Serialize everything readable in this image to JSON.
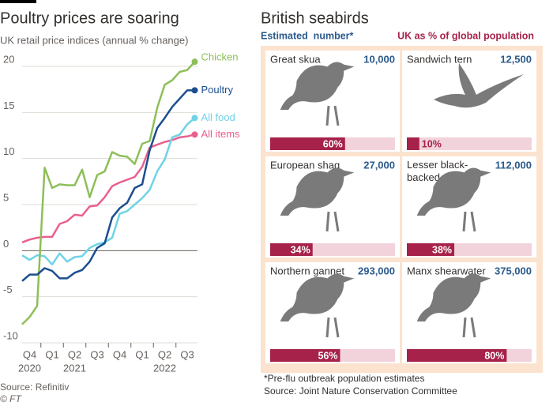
{
  "chart_data": [
    {
      "type": "line",
      "title": "Poultry prices are soaring",
      "subtitle": "UK retail price indices (annual % change)",
      "categories": [
        null,
        "Q4",
        null,
        null,
        "Q1",
        null,
        null,
        "Q2",
        null,
        null,
        "Q3",
        null,
        null,
        "Q4",
        null,
        null,
        "Q1",
        null,
        null,
        "Q2",
        null,
        null,
        "Q3",
        null
      ],
      "years": [
        null,
        "2020",
        null,
        null,
        null,
        null,
        null,
        "2021",
        null,
        null,
        null,
        null,
        null,
        null,
        null,
        null,
        null,
        null,
        null,
        "2022",
        null,
        null,
        null,
        null
      ],
      "ylim": [
        -10,
        20
      ],
      "yticks": [
        -10,
        -5,
        0,
        5,
        10,
        15,
        20
      ],
      "grid": true,
      "series": [
        {
          "name": "Chicken",
          "color": "#8dbf58",
          "values": [
            -8,
            -7.2,
            -6,
            9,
            6.8,
            7.2,
            7.1,
            7.1,
            8.8,
            5.8,
            8.2,
            8.6,
            10.7,
            10.3,
            10.2,
            9.4,
            11.6,
            11.9,
            15.5,
            18,
            18.5,
            19.4,
            19.6,
            20.5
          ]
        },
        {
          "name": "Poultry",
          "color": "#1b4e8f",
          "values": [
            -3.3,
            -2.6,
            -2.6,
            -1.9,
            -2.2,
            -3,
            -3,
            -2.4,
            -2.1,
            -1.2,
            0.3,
            0.8,
            3.6,
            4.6,
            5.2,
            6.8,
            7.2,
            10.9,
            13.3,
            14.4,
            15.6,
            16.5,
            17.4,
            17.4
          ]
        },
        {
          "name": "All food",
          "color": "#6fd3e6",
          "values": [
            -0.5,
            -1,
            -0.5,
            -0.6,
            -1.5,
            -0.3,
            -1.2,
            -0.7,
            -0.6,
            0.3,
            0.7,
            0.9,
            1.4,
            4,
            4.3,
            5,
            5.7,
            6.6,
            8.6,
            9.9,
            12.3,
            12.6,
            13.7,
            14.4
          ]
        },
        {
          "name": "All items",
          "color": "#e8608e",
          "values": [
            0.9,
            1.2,
            1.4,
            1.5,
            1.5,
            2.9,
            3.2,
            3.9,
            3.8,
            4.8,
            4.9,
            5.8,
            7,
            7.4,
            7.7,
            8,
            9.1,
            11.2,
            11.5,
            11.8,
            12,
            12.3,
            12.4,
            12.6
          ]
        }
      ],
      "notes": [
        "Source: Refinitiv",
        "© FT"
      ]
    },
    {
      "type": "pictogram",
      "title": "British seabirds",
      "categories": [
        "Great skua",
        "Sandwich tern",
        "European shag",
        "Lesser black-backed gull",
        "Northern gannet",
        "Manx shearwater"
      ],
      "xlim": [
        0,
        100
      ],
      "series": [
        {
          "name": "Estimated  number*",
          "color": "#2b5a8c",
          "values": [
            10000,
            12500,
            27000,
            112000,
            293000,
            375000
          ],
          "value_labels": [
            "10,000",
            "12,500",
            "27,000",
            "112,000",
            "293,000",
            "375,000"
          ]
        },
        {
          "name": "UK as % of global population",
          "color": "#a6224a",
          "values": [
            60,
            10,
            34,
            38,
            56,
            80
          ],
          "value_labels": [
            "60%",
            "10%",
            "34%",
            "38%",
            "56%",
            "80%"
          ]
        }
      ],
      "notes": [
        "*Pre-flu outbreak population estimates",
        "Source: Joint Nature Conservation Committee"
      ]
    }
  ]
}
